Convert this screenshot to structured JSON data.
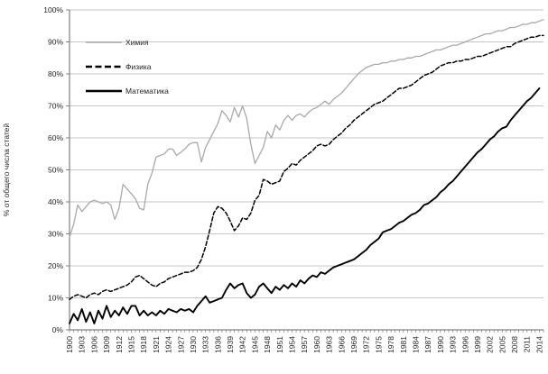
{
  "chart_data": {
    "type": "line",
    "title": "",
    "xlabel": "",
    "ylabel": "% от общего числа статей",
    "ylim": [
      0,
      100
    ],
    "grid": "horizontal-10pct",
    "legend_position": "top-left-inside",
    "y_tick_labels": [
      "0%",
      "10%",
      "20%",
      "30%",
      "40%",
      "50%",
      "60%",
      "70%",
      "80%",
      "90%",
      "100%"
    ],
    "x_start_year": 1900,
    "x_end_year": 2014,
    "x_tick_step_years": 3,
    "x_tick_labels": [
      "1900",
      "1903",
      "1906",
      "1909",
      "1912",
      "1915",
      "1918",
      "1921",
      "1924",
      "1927",
      "1930",
      "1933",
      "1936",
      "1939",
      "1942",
      "1945",
      "1948",
      "1951",
      "1954",
      "1957",
      "1960",
      "1963",
      "1966",
      "1969",
      "1972",
      "1975",
      "1978",
      "1981",
      "1984",
      "1987",
      "1990",
      "1993",
      "1996",
      "1999",
      "2002",
      "2005",
      "2008",
      "2011",
      "2014"
    ],
    "colors": {
      "chemistry": "#a9a9a9",
      "physics": "#000000",
      "math": "#000000",
      "gridline": "#c6c6c6",
      "axis": "#808080",
      "text": "#262626"
    },
    "series": [
      {
        "name": "Химия",
        "key": "chemistry",
        "style": "solid",
        "values": [
          29,
          33,
          39,
          37,
          38.5,
          40,
          40.5,
          40,
          39.5,
          40,
          39,
          34.5,
          38,
          45.5,
          44,
          42.5,
          41,
          38,
          37.5,
          45.5,
          49,
          54,
          54.5,
          55,
          56.5,
          56.5,
          54.5,
          55.5,
          56.5,
          58,
          58.5,
          58.5,
          52.5,
          57,
          59.5,
          62,
          64.5,
          68.5,
          67,
          65,
          69.5,
          66.5,
          70,
          66,
          58,
          52,
          54.5,
          57,
          62,
          60,
          64,
          62.5,
          65.5,
          67,
          65.5,
          67,
          67.5,
          66.5,
          68,
          69,
          69.5,
          70.5,
          71.5,
          70.5,
          72,
          73,
          74,
          75.5,
          77,
          78.5,
          80,
          81,
          82,
          82.5,
          83,
          83,
          83.5,
          83.5,
          84,
          84,
          84.5,
          84.5,
          85,
          85,
          85.5,
          85.5,
          86,
          86.5,
          87,
          87.5,
          87.5,
          88,
          88.5,
          89,
          89,
          89.5,
          90,
          90.5,
          91,
          91.5,
          92,
          92.5,
          92.5,
          93,
          93.5,
          93.5,
          94,
          94.5,
          94.5,
          95,
          95.5,
          95.5,
          96,
          96,
          96.5,
          97
        ]
      },
      {
        "name": "Физика",
        "key": "physics",
        "style": "dashed",
        "values": [
          9.5,
          10.5,
          11,
          10.5,
          10,
          11,
          11.5,
          11,
          12,
          12.5,
          12,
          12.5,
          13,
          13.5,
          14,
          15,
          16.5,
          17,
          16,
          15,
          14,
          13.5,
          14.5,
          15,
          16,
          16.5,
          17,
          17.5,
          18,
          18,
          18.5,
          19.5,
          22,
          26,
          31,
          36.5,
          38.5,
          38,
          36.5,
          34,
          31,
          32.5,
          35,
          34.5,
          36.5,
          40.5,
          42,
          47,
          46.5,
          45.5,
          46,
          46.5,
          49.5,
          50.5,
          52,
          51.5,
          53,
          54,
          55,
          56,
          57.5,
          58,
          57.5,
          58,
          59.5,
          60.5,
          61.5,
          63,
          64,
          65.5,
          66.5,
          67.5,
          68.5,
          69.5,
          70.5,
          71,
          71.5,
          72.5,
          73.5,
          74.5,
          75.5,
          75.5,
          76,
          76.5,
          77.5,
          78.5,
          79.5,
          80,
          80.5,
          81.5,
          82.5,
          83,
          83.5,
          83.5,
          84,
          84,
          84.5,
          84.5,
          85,
          85.5,
          85.5,
          86,
          86.5,
          87,
          87.5,
          88,
          88.5,
          88.5,
          89.5,
          90,
          90.5,
          91,
          91.5,
          91.5,
          92,
          92
        ]
      },
      {
        "name": "Математика",
        "key": "math",
        "style": "solid-bold",
        "values": [
          2,
          5,
          3,
          6.5,
          2.5,
          5.5,
          2,
          6,
          3.5,
          7.5,
          4,
          6,
          4.5,
          7,
          5,
          7.5,
          7.5,
          4.5,
          6,
          4.5,
          5.5,
          4.5,
          6,
          5,
          6.5,
          6,
          5.5,
          6.5,
          6,
          6.5,
          5.5,
          7.5,
          9,
          10.5,
          8.5,
          9,
          9.5,
          10,
          12.5,
          14.5,
          13,
          14,
          14.5,
          11.5,
          10,
          11,
          13.5,
          14.5,
          13,
          11.5,
          13.5,
          12.5,
          14,
          13,
          14.5,
          13.5,
          15.5,
          14.5,
          16,
          17,
          16.5,
          18,
          17.5,
          18.5,
          19.5,
          20,
          20.5,
          21,
          21.5,
          22,
          23,
          24,
          25,
          26.5,
          27.5,
          28.5,
          30.5,
          31,
          31.5,
          32.5,
          33.5,
          34,
          35,
          36,
          36.5,
          37.5,
          39,
          39.5,
          40.5,
          41.5,
          43,
          44,
          45.5,
          46.5,
          48,
          49.5,
          51,
          52.5,
          54,
          55.5,
          56.5,
          58,
          59.5,
          60.5,
          62,
          63,
          63.5,
          65.5,
          67,
          68.5,
          70,
          71.5,
          72.5,
          74,
          75.5
        ]
      }
    ]
  }
}
